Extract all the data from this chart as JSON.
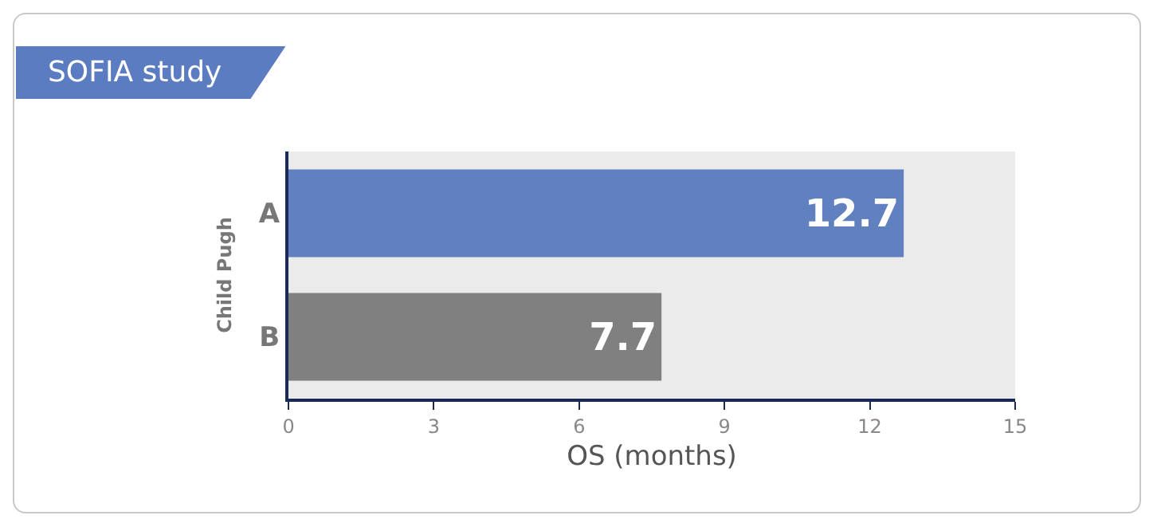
{
  "chart_data": {
    "type": "bar",
    "orientation": "horizontal",
    "title": "SOFIA study",
    "ylabel": "Child Pugh",
    "xlabel": "OS (months)",
    "categories": [
      "A",
      "B"
    ],
    "values": [
      12.7,
      7.7
    ],
    "colors": [
      "#6080c0",
      "#808080"
    ],
    "xlim": [
      0,
      15
    ],
    "xticks": [
      0,
      3,
      6,
      9,
      12,
      15
    ],
    "data_labels": true
  }
}
